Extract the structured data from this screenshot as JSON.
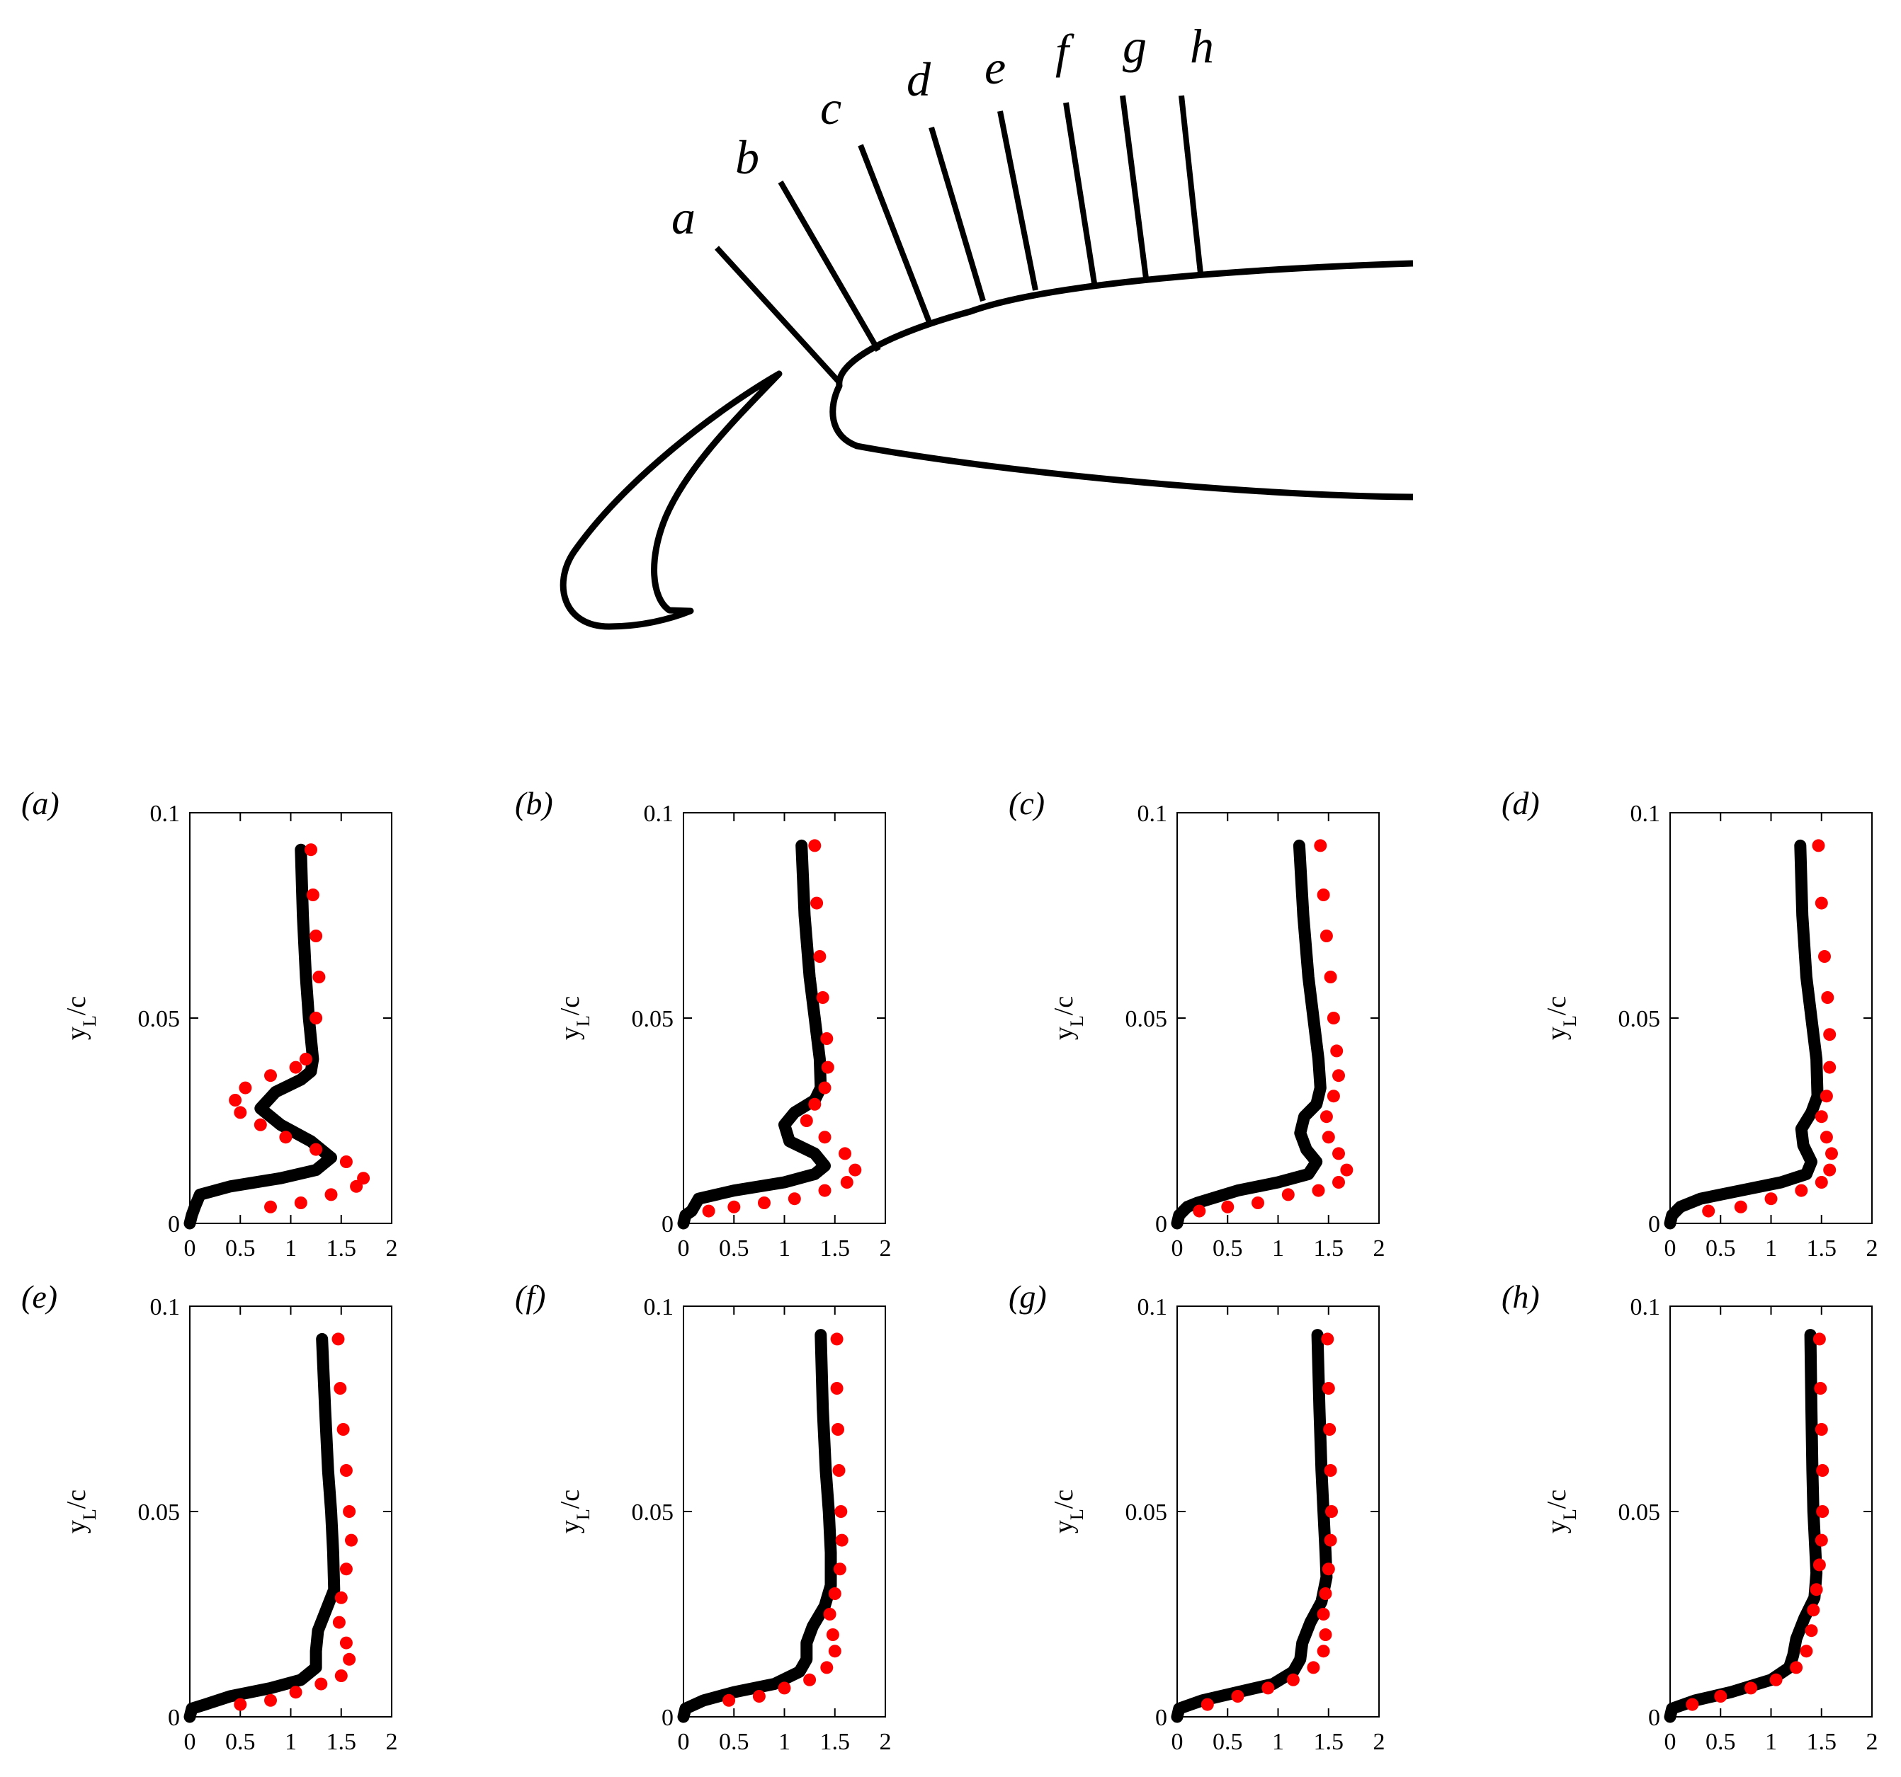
{
  "figure": {
    "stations": [
      "a",
      "b",
      "c",
      "d",
      "e",
      "f",
      "g",
      "h"
    ]
  },
  "colors": {
    "line": "#000000",
    "dots": "#ff0000"
  },
  "chart_data": [
    {
      "panel": "(a)",
      "type": "line",
      "ylabel": "y_L/c",
      "xlim": [
        0,
        2
      ],
      "ylim": [
        0,
        0.1
      ],
      "xticks": [
        "0",
        "0.5",
        "1",
        "1.5",
        "2"
      ],
      "yticks": [
        "0",
        "0.05",
        "0.1"
      ],
      "series": [
        {
          "style": "line",
          "x": [
            0.0,
            0.02,
            0.05,
            0.1,
            0.4,
            0.9,
            1.25,
            1.4,
            1.2,
            0.9,
            0.7,
            0.85,
            1.1,
            1.2,
            1.22,
            1.18,
            1.15,
            1.12,
            1.1
          ],
          "y": [
            0.0,
            0.002,
            0.004,
            0.007,
            0.009,
            0.011,
            0.013,
            0.016,
            0.02,
            0.024,
            0.028,
            0.032,
            0.035,
            0.037,
            0.04,
            0.05,
            0.06,
            0.075,
            0.091
          ]
        },
        {
          "style": "dots",
          "x": [
            0.8,
            1.1,
            1.4,
            1.65,
            1.72,
            1.55,
            1.25,
            0.95,
            0.7,
            0.5,
            0.45,
            0.55,
            0.8,
            1.05,
            1.15,
            1.25,
            1.28,
            1.25,
            1.22,
            1.2
          ],
          "y": [
            0.004,
            0.005,
            0.007,
            0.009,
            0.011,
            0.015,
            0.018,
            0.021,
            0.024,
            0.027,
            0.03,
            0.033,
            0.036,
            0.038,
            0.04,
            0.05,
            0.06,
            0.07,
            0.08,
            0.091
          ]
        }
      ]
    },
    {
      "panel": "(b)",
      "type": "line",
      "ylabel": "y_L/c",
      "xlim": [
        0,
        2
      ],
      "ylim": [
        0,
        0.1
      ],
      "xticks": [
        "0",
        "0.5",
        "1",
        "1.5",
        "2"
      ],
      "yticks": [
        "0",
        "0.05",
        "0.1"
      ],
      "series": [
        {
          "style": "line",
          "x": [
            0.0,
            0.02,
            0.08,
            0.15,
            0.5,
            1.0,
            1.3,
            1.4,
            1.3,
            1.05,
            1.0,
            1.1,
            1.3,
            1.36,
            1.35,
            1.3,
            1.25,
            1.2,
            1.17
          ],
          "y": [
            0.0,
            0.002,
            0.003,
            0.006,
            0.008,
            0.01,
            0.012,
            0.014,
            0.017,
            0.02,
            0.024,
            0.027,
            0.03,
            0.033,
            0.04,
            0.05,
            0.06,
            0.075,
            0.092
          ]
        },
        {
          "style": "dots",
          "x": [
            0.25,
            0.5,
            0.8,
            1.1,
            1.4,
            1.62,
            1.7,
            1.6,
            1.4,
            1.22,
            1.3,
            1.4,
            1.43,
            1.42,
            1.38,
            1.35,
            1.32,
            1.3
          ],
          "y": [
            0.003,
            0.004,
            0.005,
            0.006,
            0.008,
            0.01,
            0.013,
            0.017,
            0.021,
            0.025,
            0.029,
            0.033,
            0.038,
            0.045,
            0.055,
            0.065,
            0.078,
            0.092
          ]
        }
      ]
    },
    {
      "panel": "(c)",
      "type": "line",
      "ylabel": "y_L/c",
      "xlim": [
        0,
        2
      ],
      "ylim": [
        0,
        0.1
      ],
      "xticks": [
        "0",
        "0.5",
        "1",
        "1.5",
        "2"
      ],
      "yticks": [
        "0",
        "0.05",
        "0.1"
      ],
      "series": [
        {
          "style": "line",
          "x": [
            0.0,
            0.02,
            0.1,
            0.2,
            0.6,
            1.0,
            1.3,
            1.38,
            1.28,
            1.22,
            1.26,
            1.38,
            1.42,
            1.4,
            1.35,
            1.3,
            1.25,
            1.21
          ],
          "y": [
            0.0,
            0.002,
            0.004,
            0.005,
            0.008,
            0.01,
            0.012,
            0.015,
            0.018,
            0.022,
            0.026,
            0.029,
            0.033,
            0.04,
            0.05,
            0.06,
            0.075,
            0.092
          ]
        },
        {
          "style": "dots",
          "x": [
            0.22,
            0.5,
            0.8,
            1.1,
            1.4,
            1.6,
            1.68,
            1.6,
            1.5,
            1.48,
            1.55,
            1.6,
            1.58,
            1.55,
            1.52,
            1.48,
            1.45,
            1.42
          ],
          "y": [
            0.003,
            0.004,
            0.005,
            0.007,
            0.008,
            0.01,
            0.013,
            0.017,
            0.021,
            0.026,
            0.031,
            0.036,
            0.042,
            0.05,
            0.06,
            0.07,
            0.08,
            0.092
          ]
        }
      ]
    },
    {
      "panel": "(d)",
      "type": "line",
      "ylabel": "y_L/c",
      "xlim": [
        0,
        2
      ],
      "ylim": [
        0,
        0.1
      ],
      "xticks": [
        "0",
        "0.5",
        "1",
        "1.5",
        "2"
      ],
      "yticks": [
        "0",
        "0.05",
        "0.1"
      ],
      "series": [
        {
          "style": "line",
          "x": [
            0.0,
            0.02,
            0.1,
            0.3,
            0.7,
            1.1,
            1.35,
            1.4,
            1.32,
            1.3,
            1.4,
            1.46,
            1.45,
            1.4,
            1.35,
            1.31,
            1.29
          ],
          "y": [
            0.0,
            0.002,
            0.004,
            0.006,
            0.008,
            0.01,
            0.012,
            0.015,
            0.019,
            0.023,
            0.027,
            0.031,
            0.04,
            0.05,
            0.06,
            0.075,
            0.092
          ]
        },
        {
          "style": "dots",
          "x": [
            0.38,
            0.7,
            1.0,
            1.3,
            1.5,
            1.58,
            1.6,
            1.55,
            1.5,
            1.55,
            1.58,
            1.58,
            1.56,
            1.53,
            1.5,
            1.47
          ],
          "y": [
            0.003,
            0.004,
            0.006,
            0.008,
            0.01,
            0.013,
            0.017,
            0.021,
            0.026,
            0.031,
            0.038,
            0.046,
            0.055,
            0.065,
            0.078,
            0.092
          ]
        }
      ]
    },
    {
      "panel": "(e)",
      "type": "line",
      "ylabel": "y_L/c",
      "xlim": [
        0,
        2
      ],
      "ylim": [
        0,
        0.1
      ],
      "xticks": [
        "0",
        "0.5",
        "1",
        "1.5",
        "2"
      ],
      "yticks": [
        "0",
        "0.05",
        "0.1"
      ],
      "series": [
        {
          "style": "line",
          "x": [
            0.0,
            0.02,
            0.15,
            0.4,
            0.8,
            1.1,
            1.25,
            1.25,
            1.27,
            1.35,
            1.43,
            1.42,
            1.4,
            1.37,
            1.34,
            1.31
          ],
          "y": [
            0.0,
            0.002,
            0.003,
            0.005,
            0.007,
            0.009,
            0.012,
            0.016,
            0.021,
            0.026,
            0.031,
            0.04,
            0.05,
            0.06,
            0.075,
            0.092
          ]
        },
        {
          "style": "dots",
          "x": [
            0.5,
            0.8,
            1.05,
            1.3,
            1.5,
            1.58,
            1.55,
            1.48,
            1.5,
            1.55,
            1.6,
            1.58,
            1.55,
            1.52,
            1.49,
            1.47
          ],
          "y": [
            0.003,
            0.004,
            0.006,
            0.008,
            0.01,
            0.014,
            0.018,
            0.023,
            0.029,
            0.036,
            0.043,
            0.05,
            0.06,
            0.07,
            0.08,
            0.092
          ]
        }
      ]
    },
    {
      "panel": "(f)",
      "type": "line",
      "ylabel": "y_L/c",
      "xlim": [
        0,
        2
      ],
      "ylim": [
        0,
        0.1
      ],
      "xticks": [
        "0",
        "0.5",
        "1",
        "1.5",
        "2"
      ],
      "yticks": [
        "0",
        "0.05",
        "0.1"
      ],
      "series": [
        {
          "style": "line",
          "x": [
            0.0,
            0.02,
            0.2,
            0.5,
            0.9,
            1.15,
            1.22,
            1.22,
            1.28,
            1.4,
            1.46,
            1.46,
            1.44,
            1.41,
            1.38,
            1.36
          ],
          "y": [
            0.0,
            0.002,
            0.004,
            0.006,
            0.008,
            0.011,
            0.014,
            0.018,
            0.022,
            0.027,
            0.032,
            0.04,
            0.05,
            0.06,
            0.075,
            0.093
          ]
        },
        {
          "style": "dots",
          "x": [
            0.45,
            0.75,
            1.0,
            1.25,
            1.42,
            1.5,
            1.48,
            1.45,
            1.5,
            1.55,
            1.57,
            1.56,
            1.54,
            1.53,
            1.52,
            1.52
          ],
          "y": [
            0.004,
            0.005,
            0.007,
            0.009,
            0.012,
            0.016,
            0.02,
            0.025,
            0.03,
            0.036,
            0.043,
            0.05,
            0.06,
            0.07,
            0.08,
            0.092
          ]
        }
      ]
    },
    {
      "panel": "(g)",
      "type": "line",
      "ylabel": "y_L/c",
      "xlim": [
        0,
        2
      ],
      "ylim": [
        0,
        0.1
      ],
      "xticks": [
        "0",
        "0.5",
        "1",
        "1.5",
        "2"
      ],
      "yticks": [
        "0",
        "0.05",
        "0.1"
      ],
      "series": [
        {
          "style": "line",
          "x": [
            0.0,
            0.02,
            0.25,
            0.6,
            0.95,
            1.15,
            1.22,
            1.24,
            1.32,
            1.43,
            1.48,
            1.47,
            1.45,
            1.43,
            1.41,
            1.39
          ],
          "y": [
            0.0,
            0.002,
            0.004,
            0.006,
            0.008,
            0.011,
            0.014,
            0.018,
            0.023,
            0.028,
            0.034,
            0.04,
            0.05,
            0.06,
            0.075,
            0.093
          ]
        },
        {
          "style": "dots",
          "x": [
            0.3,
            0.6,
            0.9,
            1.15,
            1.35,
            1.45,
            1.47,
            1.45,
            1.47,
            1.5,
            1.52,
            1.53,
            1.52,
            1.51,
            1.5,
            1.49
          ],
          "y": [
            0.003,
            0.005,
            0.007,
            0.009,
            0.012,
            0.016,
            0.02,
            0.025,
            0.03,
            0.036,
            0.043,
            0.05,
            0.06,
            0.07,
            0.08,
            0.092
          ]
        }
      ]
    },
    {
      "panel": "(h)",
      "type": "line",
      "ylabel": "y_L/c",
      "xlim": [
        0,
        2
      ],
      "ylim": [
        0,
        0.1
      ],
      "xticks": [
        "0",
        "0.5",
        "1",
        "1.5",
        "2"
      ],
      "yticks": [
        "0",
        "0.05",
        "0.1"
      ],
      "series": [
        {
          "style": "line",
          "x": [
            0.0,
            0.02,
            0.25,
            0.6,
            1.0,
            1.18,
            1.22,
            1.25,
            1.33,
            1.43,
            1.45,
            1.44,
            1.42,
            1.41,
            1.4,
            1.39
          ],
          "y": [
            0.0,
            0.002,
            0.004,
            0.006,
            0.009,
            0.012,
            0.015,
            0.019,
            0.024,
            0.029,
            0.035,
            0.04,
            0.05,
            0.06,
            0.075,
            0.093
          ]
        },
        {
          "style": "dots",
          "x": [
            0.22,
            0.5,
            0.8,
            1.05,
            1.25,
            1.35,
            1.4,
            1.42,
            1.45,
            1.48,
            1.5,
            1.51,
            1.51,
            1.5,
            1.49,
            1.48
          ],
          "y": [
            0.003,
            0.005,
            0.007,
            0.009,
            0.012,
            0.016,
            0.021,
            0.026,
            0.031,
            0.037,
            0.043,
            0.05,
            0.06,
            0.07,
            0.08,
            0.092
          ]
        }
      ]
    }
  ]
}
